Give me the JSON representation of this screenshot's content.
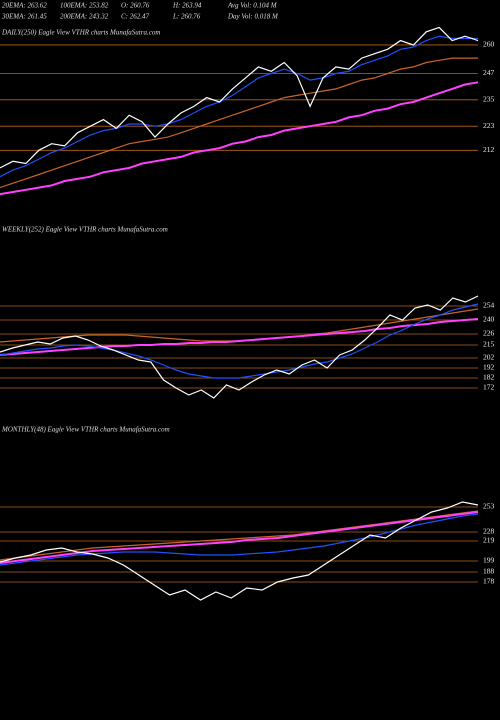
{
  "header": {
    "row1": [
      "20EMA: 263.62",
      "100EMA: 253.82",
      "O: 260.76",
      "H: 263.94",
      "Avg Vol: 0.104  M"
    ],
    "row2": [
      "30EMA: 261.45",
      "200EMA: 243.32",
      "C: 262.47",
      "L: 260.76",
      "Day Vol: 0.018  M"
    ]
  },
  "chart_data": [
    {
      "type": "line",
      "title": "DAILY(250) Eagle  View  VTHR charts MunafaSutra.com",
      "ylim": [
        188,
        270
      ],
      "yticks": [
        260,
        247,
        235,
        223,
        212
      ],
      "grid": true,
      "grid_color": "#b8651e",
      "series": [
        {
          "color": "#c8642a",
          "values": [
            195,
            197,
            199,
            201,
            203,
            205,
            207,
            209,
            211,
            213,
            215,
            216,
            217,
            218,
            220,
            222,
            224,
            226,
            228,
            230,
            232,
            234,
            236,
            237,
            238,
            239,
            240,
            242,
            244,
            245,
            247,
            249,
            250,
            252,
            253,
            254,
            254,
            254
          ]
        },
        {
          "color": "#ff40ff",
          "values": [
            192,
            193,
            194,
            195,
            196,
            198,
            199,
            200,
            202,
            203,
            204,
            206,
            207,
            208,
            209,
            211,
            212,
            213,
            215,
            216,
            218,
            219,
            221,
            222,
            223,
            224,
            225,
            227,
            228,
            230,
            231,
            233,
            234,
            236,
            238,
            240,
            242,
            243
          ]
        },
        {
          "color": "#2050ff",
          "values": [
            200,
            203,
            205,
            208,
            211,
            213,
            216,
            219,
            221,
            222,
            224,
            224,
            223,
            224,
            226,
            229,
            232,
            234,
            237,
            241,
            245,
            247,
            249,
            247,
            244,
            245,
            247,
            248,
            251,
            253,
            255,
            258,
            259,
            262,
            264,
            263,
            263,
            263
          ]
        },
        {
          "color": "#ffffff",
          "values": [
            204,
            207,
            206,
            212,
            215,
            214,
            220,
            223,
            226,
            222,
            228,
            225,
            218,
            224,
            229,
            232,
            236,
            234,
            240,
            245,
            250,
            248,
            252,
            246,
            232,
            245,
            250,
            249,
            254,
            256,
            258,
            262,
            260,
            266,
            268,
            262,
            264,
            262
          ]
        }
      ]
    },
    {
      "type": "line",
      "title": "WEEKLY(252) Eagle  View  VTHR charts MunafaSutra.com",
      "ylim": [
        150,
        310
      ],
      "yticks": [
        254,
        240,
        226,
        215,
        202,
        192,
        182,
        172
      ],
      "grid": true,
      "grid_color": "#b8651e",
      "series": [
        {
          "color": "#c8642a",
          "values": [
            218,
            219,
            220,
            221,
            222,
            223,
            224,
            225,
            225,
            225,
            225,
            224,
            223,
            222,
            221,
            220,
            219,
            219,
            219,
            219,
            220,
            221,
            222,
            223,
            224,
            226,
            227,
            229,
            231,
            233,
            235,
            237,
            239,
            241,
            243,
            245,
            247,
            249,
            251
          ]
        },
        {
          "color": "#ff40ff",
          "values": [
            205,
            206,
            207,
            208,
            209,
            210,
            211,
            212,
            213,
            214,
            214,
            215,
            215,
            216,
            216,
            217,
            217,
            218,
            218,
            219,
            220,
            221,
            222,
            223,
            224,
            225,
            226,
            227,
            228,
            229,
            231,
            232,
            234,
            235,
            236,
            238,
            239,
            240,
            241
          ]
        },
        {
          "color": "#2050ff",
          "values": [
            205,
            207,
            209,
            211,
            212,
            214,
            215,
            214,
            212,
            210,
            207,
            204,
            200,
            195,
            190,
            186,
            184,
            182,
            182,
            182,
            184,
            186,
            188,
            190,
            193,
            196,
            198,
            202,
            206,
            212,
            218,
            225,
            230,
            236,
            241,
            245,
            250,
            253,
            256
          ]
        },
        {
          "color": "#ffffff",
          "values": [
            208,
            212,
            215,
            218,
            216,
            222,
            224,
            220,
            214,
            210,
            205,
            200,
            198,
            180,
            172,
            165,
            170,
            162,
            175,
            170,
            178,
            185,
            190,
            186,
            195,
            200,
            192,
            205,
            210,
            220,
            232,
            245,
            240,
            252,
            255,
            250,
            262,
            258,
            264
          ]
        }
      ]
    },
    {
      "type": "line",
      "title": "MONTHLY(48) Eagle  View  VTHR charts MunafaSutra.com",
      "ylim": [
        140,
        290
      ],
      "yticks": [
        253,
        228,
        219,
        199,
        188,
        178
      ],
      "grid": true,
      "grid_color": "#b8651e",
      "series": [
        {
          "color": "#c8642a",
          "values": [
            200,
            202,
            204,
            206,
            208,
            210,
            212,
            213,
            214,
            215,
            216,
            217,
            218,
            219,
            220,
            221,
            222,
            223,
            224,
            225,
            227,
            229,
            231,
            233,
            235,
            237,
            239,
            241,
            243,
            245,
            247,
            249
          ]
        },
        {
          "color": "#ff40ff",
          "values": [
            197,
            199,
            201,
            203,
            205,
            207,
            209,
            210,
            211,
            212,
            213,
            214,
            215,
            216,
            217,
            218,
            220,
            221,
            222,
            224,
            226,
            228,
            230,
            232,
            234,
            236,
            238,
            240,
            242,
            244,
            246,
            248
          ]
        },
        {
          "color": "#2050ff",
          "values": [
            195,
            197,
            199,
            201,
            203,
            205,
            206,
            207,
            208,
            208,
            208,
            207,
            206,
            205,
            205,
            205,
            206,
            207,
            208,
            210,
            212,
            214,
            217,
            220,
            223,
            227,
            231,
            235,
            238,
            241,
            244,
            246
          ]
        },
        {
          "color": "#ffffff",
          "values": [
            198,
            202,
            205,
            210,
            212,
            208,
            206,
            202,
            195,
            185,
            175,
            165,
            170,
            160,
            168,
            162,
            172,
            170,
            178,
            182,
            185,
            195,
            205,
            215,
            225,
            222,
            232,
            240,
            248,
            252,
            258,
            255
          ]
        }
      ]
    }
  ]
}
